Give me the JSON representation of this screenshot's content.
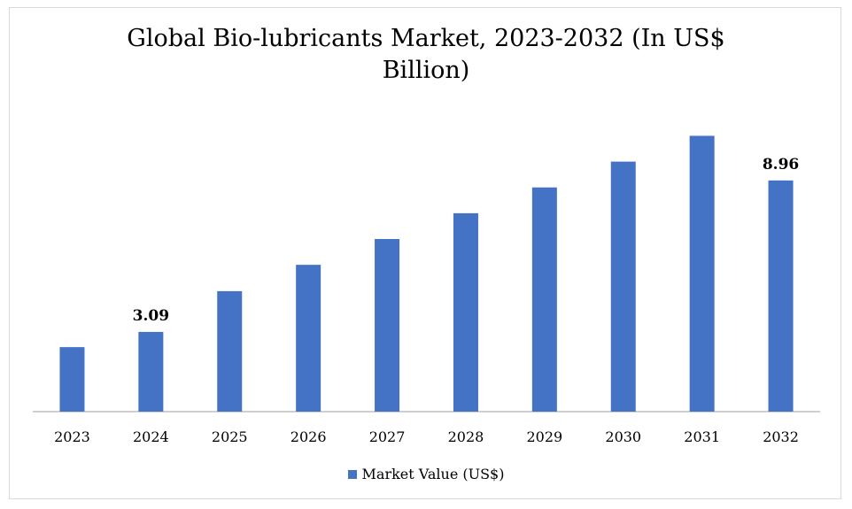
{
  "chart_data": {
    "type": "bar",
    "title_lines": [
      "Global Bio-lubricants Market, 2023-2032 (In US$",
      "Billion)"
    ],
    "categories": [
      "2023",
      "2024",
      "2025",
      "2026",
      "2027",
      "2028",
      "2029",
      "2030",
      "2031",
      "2032"
    ],
    "series": [
      {
        "name": "Market Value (US$)",
        "values": [
          2.5,
          3.09,
          4.67,
          5.69,
          6.69,
          7.69,
          8.69,
          9.69,
          10.69,
          8.96
        ],
        "data_labels": [
          "",
          "3.09",
          "",
          "",
          "",
          "",
          "",
          "",
          "",
          "8.96"
        ]
      }
    ],
    "ylim": [
      0,
      11.7
    ],
    "grid": false,
    "legend_position": "bottom",
    "colors": {
      "bar": "#4472c4",
      "axis": "#bfbfbf"
    }
  }
}
